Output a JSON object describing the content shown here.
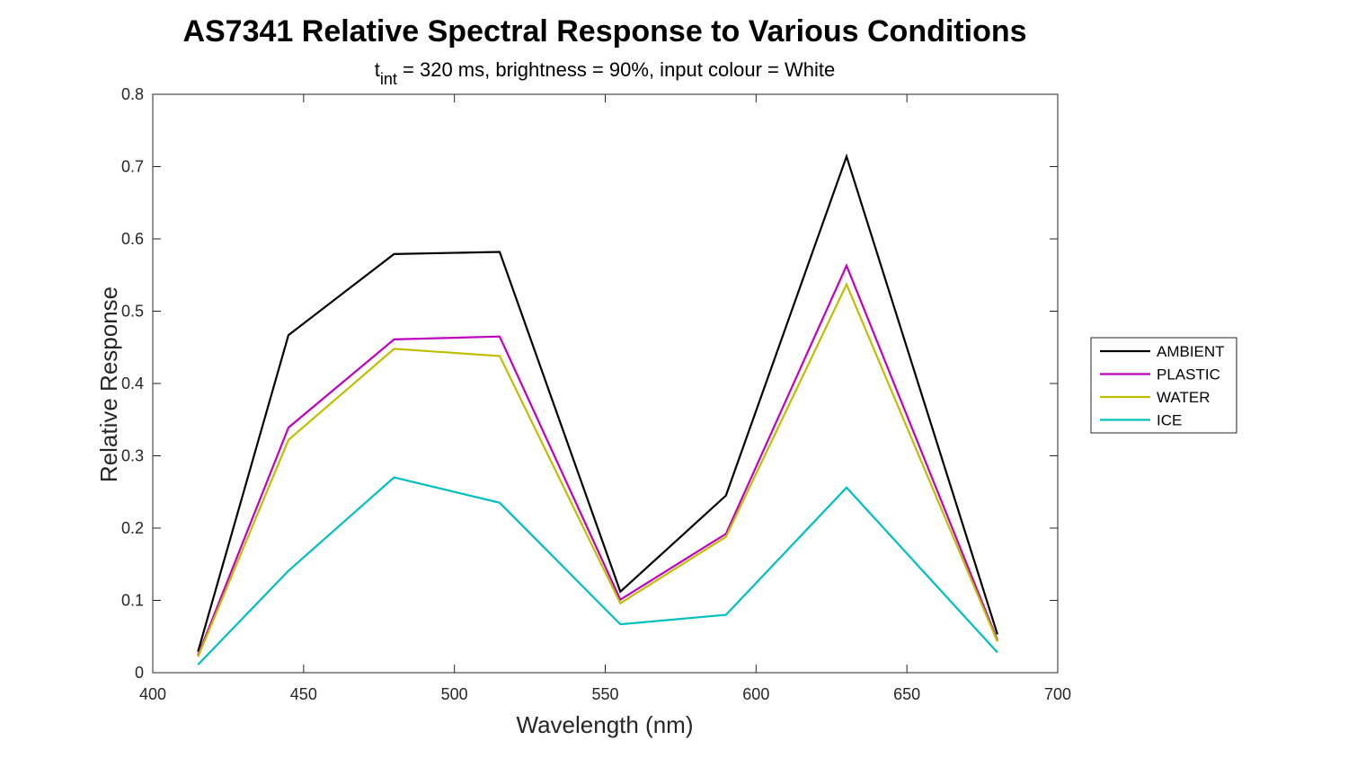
{
  "chart_data": {
    "type": "line",
    "title": "AS7341 Relative Spectral Response to Various Conditions",
    "subtitle": {
      "t": "t",
      "sub": "int",
      "rest": " = 320 ms, brightness = 90%, input colour = White"
    },
    "xlabel": "Wavelength (nm)",
    "ylabel": "Relative Response",
    "xlim": [
      400,
      700
    ],
    "ylim": [
      0,
      0.8
    ],
    "xticks": [
      400,
      450,
      500,
      550,
      600,
      650,
      700
    ],
    "yticks": [
      0,
      0.1,
      0.2,
      0.3,
      0.4,
      0.5,
      0.6,
      0.7,
      0.8
    ],
    "x": [
      415,
      445,
      480,
      515,
      555,
      590,
      630,
      680
    ],
    "series": [
      {
        "name": "AMBIENT",
        "color": "#000000",
        "values": [
          0.029,
          0.467,
          0.579,
          0.582,
          0.112,
          0.245,
          0.714,
          0.053
        ]
      },
      {
        "name": "PLASTIC",
        "color": "#BF00BF",
        "values": [
          0.024,
          0.339,
          0.461,
          0.465,
          0.101,
          0.192,
          0.563,
          0.045
        ]
      },
      {
        "name": "WATER",
        "color": "#BFBF00",
        "values": [
          0.022,
          0.322,
          0.448,
          0.438,
          0.096,
          0.188,
          0.537,
          0.043
        ]
      },
      {
        "name": "ICE",
        "color": "#00BFBF",
        "values": [
          0.011,
          0.141,
          0.27,
          0.235,
          0.067,
          0.08,
          0.256,
          0.028
        ]
      }
    ],
    "legend_location": "right",
    "grid": false
  }
}
